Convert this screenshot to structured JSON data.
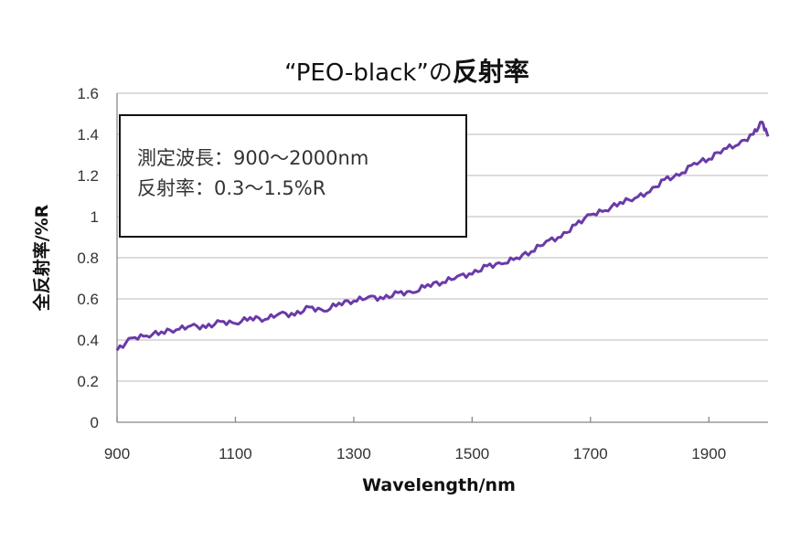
{
  "chart_data": {
    "type": "line",
    "title": "“PEO-black”の",
    "title_bold": "反射率",
    "xlabel": "Wavelength/nm",
    "ylabel": "全反射率/%R",
    "xlim": [
      900,
      2000
    ],
    "ylim": [
      0,
      1.6
    ],
    "xticks": [
      900,
      1100,
      1300,
      1500,
      1700,
      1900
    ],
    "yticks": [
      "0",
      "0.2",
      "0.4",
      "0.6",
      "0.8",
      "1",
      "1.2",
      "1.4",
      "1.6"
    ],
    "grid": true,
    "series": [
      {
        "name": "PEO-black",
        "color": "#6a3aa8",
        "x": [
          900,
          925,
          950,
          975,
          1000,
          1025,
          1050,
          1075,
          1100,
          1125,
          1150,
          1175,
          1200,
          1225,
          1250,
          1275,
          1300,
          1325,
          1350,
          1375,
          1400,
          1425,
          1450,
          1475,
          1500,
          1525,
          1550,
          1575,
          1600,
          1625,
          1650,
          1675,
          1700,
          1725,
          1750,
          1775,
          1800,
          1825,
          1850,
          1875,
          1900,
          1925,
          1950,
          1975,
          1990,
          2000
        ],
        "y": [
          0.35,
          0.41,
          0.42,
          0.44,
          0.45,
          0.47,
          0.46,
          0.49,
          0.48,
          0.51,
          0.5,
          0.53,
          0.52,
          0.56,
          0.54,
          0.58,
          0.59,
          0.61,
          0.6,
          0.63,
          0.63,
          0.67,
          0.68,
          0.71,
          0.72,
          0.76,
          0.77,
          0.8,
          0.83,
          0.88,
          0.9,
          0.96,
          1.01,
          1.03,
          1.07,
          1.09,
          1.12,
          1.18,
          1.2,
          1.26,
          1.28,
          1.33,
          1.35,
          1.4,
          1.46,
          1.39
        ]
      }
    ],
    "annotation": [
      "測定波長：900〜2000nm",
      "反射率：0.3〜1.5%R"
    ]
  }
}
